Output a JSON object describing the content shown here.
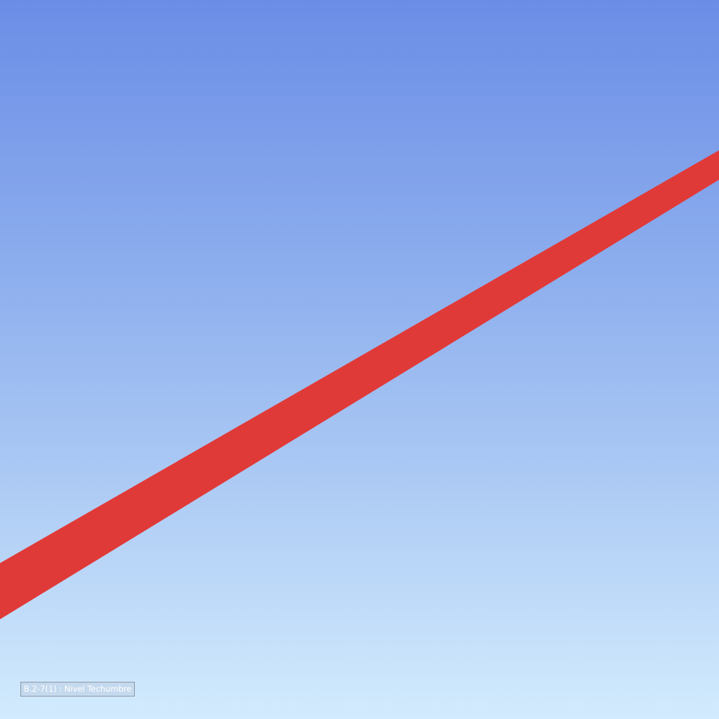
{
  "viewport": {
    "background_colors": [
      "#6b8de6",
      "#d2ebfd"
    ],
    "beam_color": "#e03a38",
    "status_label": "B.2-7(1) : Nivel Techumbre"
  }
}
